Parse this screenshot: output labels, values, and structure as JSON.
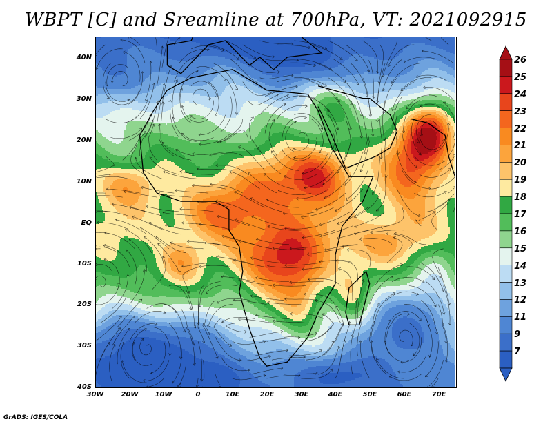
{
  "title": "WBPT [C] and Sreamline at 700hPa, VT: 2021092915",
  "map": {
    "lon_range": [
      -30,
      75
    ],
    "lat_range": [
      -40,
      45
    ],
    "lon_labels": [
      "30W",
      "20W",
      "10W",
      "0",
      "10E",
      "20E",
      "30E",
      "40E",
      "50E",
      "60E",
      "70E"
    ],
    "lat_labels": [
      "40N",
      "30N",
      "20N",
      "10N",
      "EQ",
      "10S",
      "20S",
      "30S",
      "40S"
    ]
  },
  "colorbar": {
    "labels": [
      "26",
      "25",
      "24",
      "23",
      "22",
      "21",
      "20",
      "19",
      "18",
      "17",
      "16",
      "15",
      "14",
      "13",
      "12",
      "11",
      "9",
      "7"
    ],
    "colors": [
      "#a50f15",
      "#cb181d",
      "#e8451c",
      "#f4661e",
      "#f98a20",
      "#fca43c",
      "#fdc36a",
      "#feeaa0",
      "#31a843",
      "#52bd5a",
      "#8fd58e",
      "#e4f4ee",
      "#bcdcf3",
      "#92c0ea",
      "#6ea2de",
      "#4f86d3",
      "#3b6fc9",
      "#2b5fc2"
    ]
  },
  "credit": "GrADS: IGES/COLA"
}
